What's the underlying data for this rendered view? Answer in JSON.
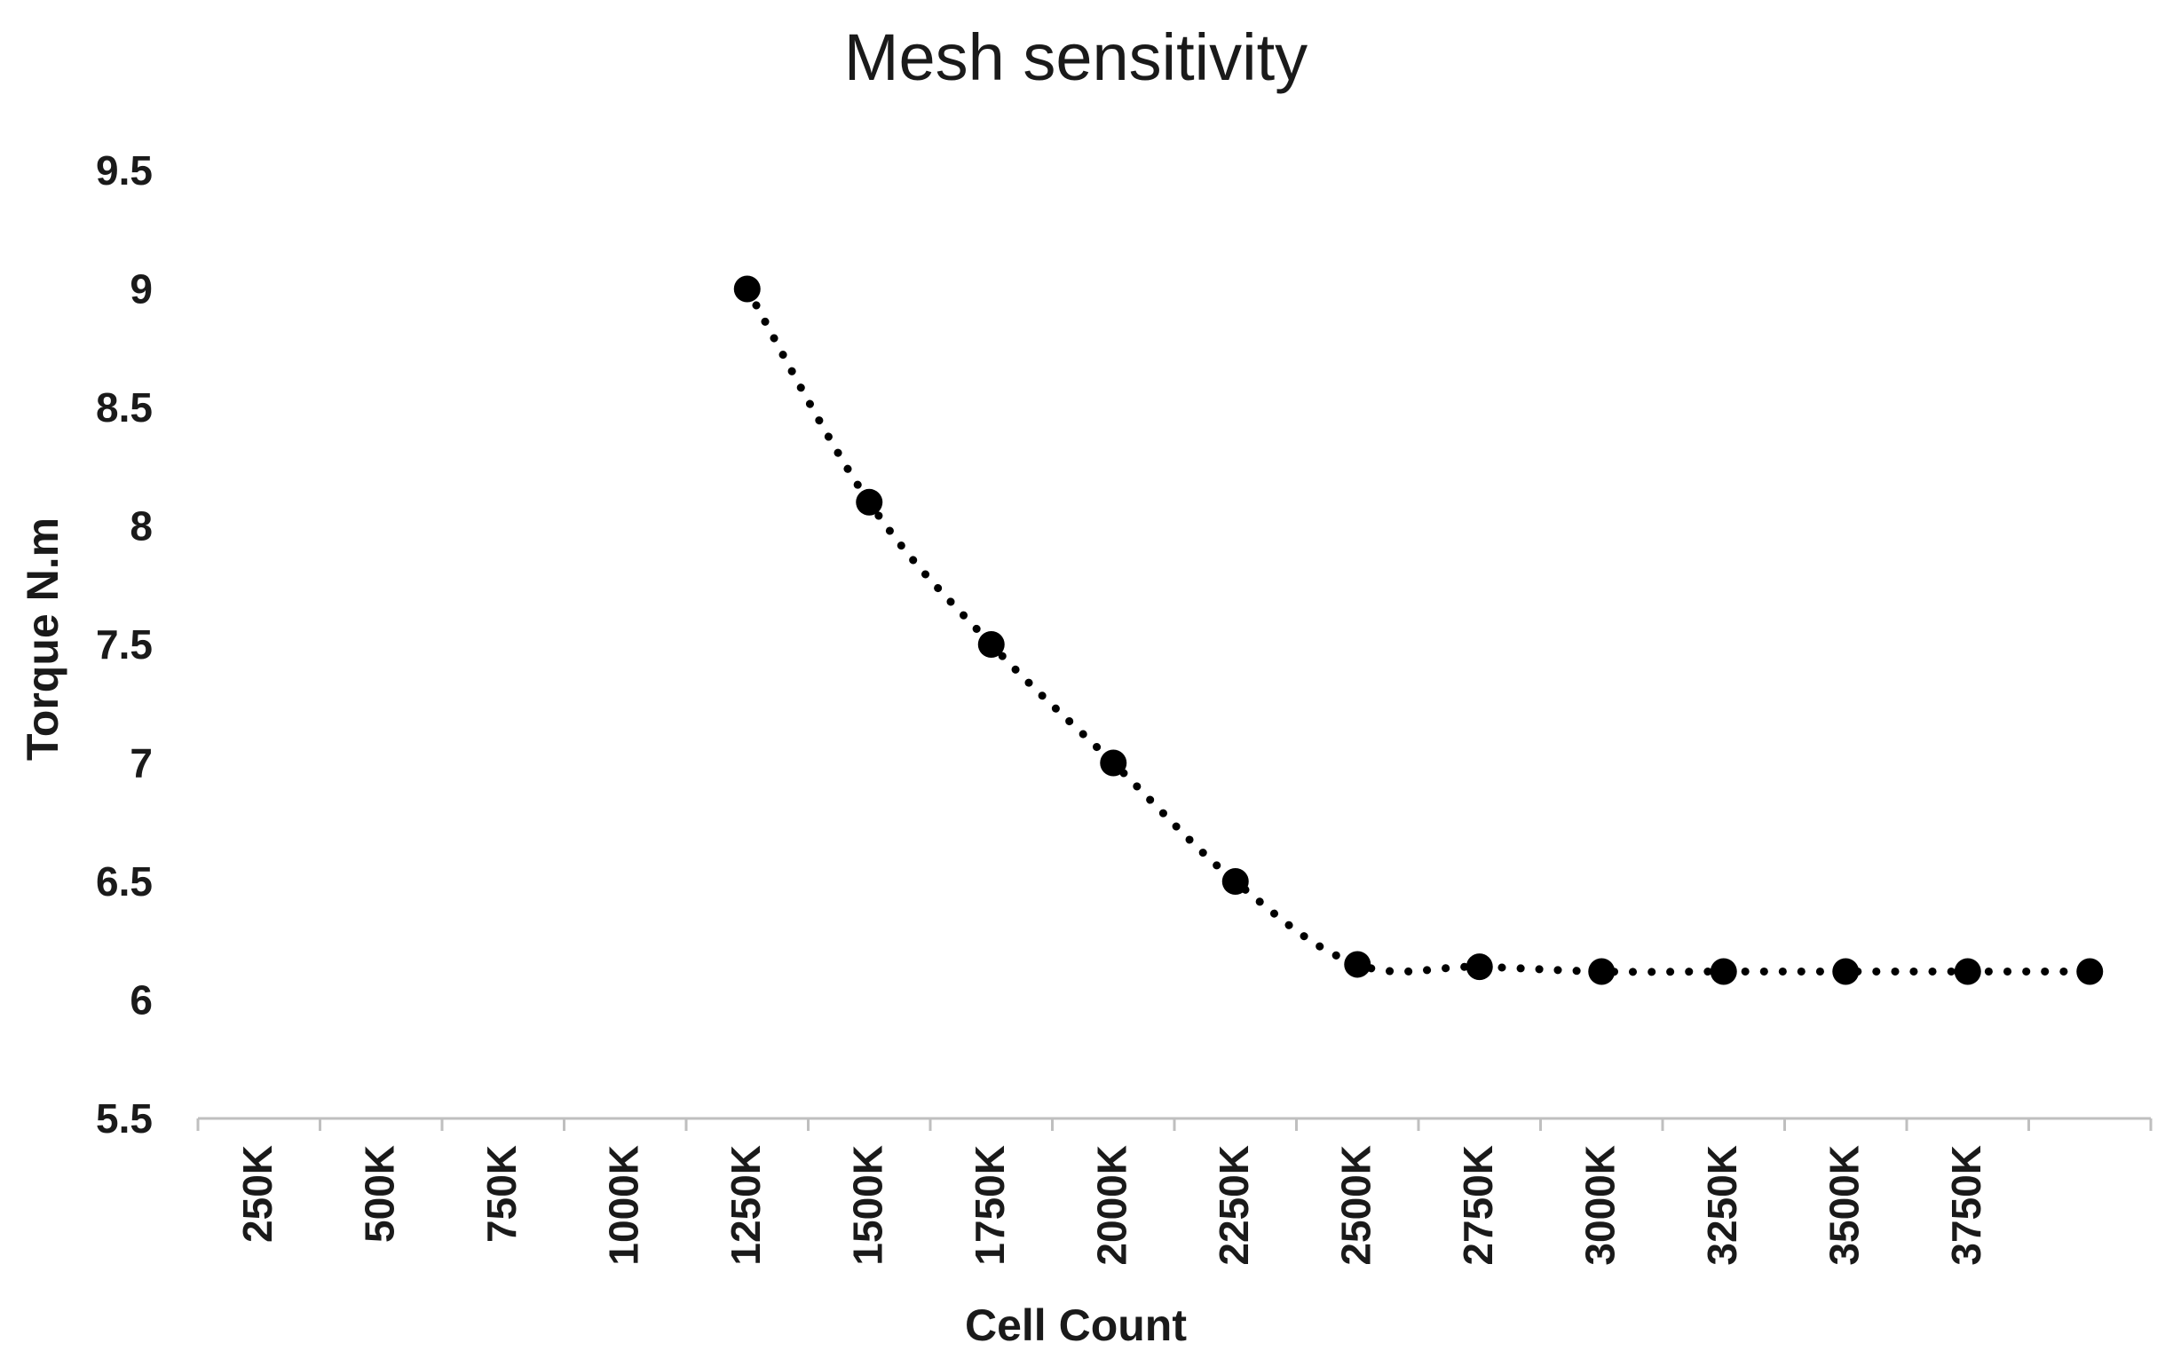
{
  "chart_data": {
    "type": "line",
    "title": "Mesh sensitivity",
    "xlabel": "Cell Count",
    "ylabel": "Torque N.m",
    "categories": [
      "250K",
      "500K",
      "750K",
      "1000K",
      "1250K",
      "1500K",
      "1750K",
      "2000K",
      "2250K",
      "2500K",
      "2750K",
      "3000K",
      "3250K",
      "3500K",
      "3750K",
      ""
    ],
    "yticks": [
      "5.5",
      "6",
      "6.5",
      "7",
      "7.5",
      "8",
      "8.5",
      "9",
      "9.5"
    ],
    "ylim": [
      5.5,
      9.5
    ],
    "grid": false,
    "legend": "none",
    "series": [
      {
        "name": "Torque",
        "line_style": "dotted",
        "marker": "circle",
        "color": "#000000",
        "values": [
          null,
          null,
          null,
          null,
          9.0,
          8.1,
          7.5,
          7.0,
          6.5,
          6.15,
          6.14,
          6.12,
          6.12,
          6.12,
          6.12,
          6.12
        ]
      }
    ]
  }
}
